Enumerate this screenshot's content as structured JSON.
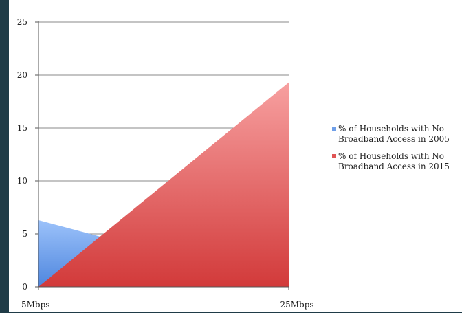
{
  "chart_data": {
    "type": "area",
    "categories": [
      "5Mbps",
      "25Mbps"
    ],
    "series": [
      {
        "name": "% of Households with No Broadband Access in 2005",
        "values": [
          6.3,
          0
        ],
        "color": "#6f9fe8"
      },
      {
        "name": "% of Households with No Broadband Access in 2015",
        "values": [
          0,
          19.3
        ],
        "color": "#e05555"
      }
    ],
    "ylim": [
      0,
      25
    ],
    "yticks": [
      0,
      5,
      10,
      15,
      20,
      25
    ],
    "grid": true,
    "legend_position": "right",
    "title": "",
    "xlabel": "",
    "ylabel": ""
  },
  "legend": {
    "items": [
      {
        "line1": "% of Households with No",
        "line2": "Broadband Access in 2005"
      },
      {
        "line1": "% of Households with No",
        "line2": "Broadband Access in 2015"
      }
    ]
  }
}
